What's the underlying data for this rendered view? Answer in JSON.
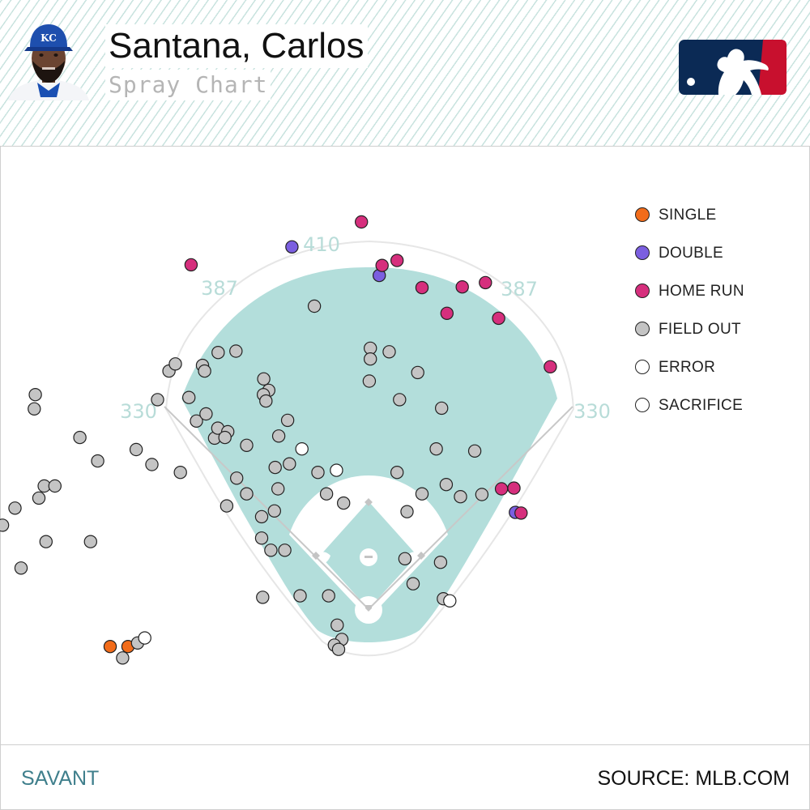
{
  "header": {
    "player_name": "Santana, Carlos",
    "subtitle": "Spray Chart",
    "avatar_icon": "player-headshot",
    "logo_icon": "mlb-logo"
  },
  "footer": {
    "left_label": "SAVANT",
    "right_label": "SOURCE: MLB.COM"
  },
  "colors": {
    "field": "#b3dedb",
    "single": "#f26c1a",
    "double": "#7b5fe0",
    "home_run": "#d62f7d",
    "field_out": "#c4c4c4",
    "error": "#ffffff",
    "sacrifice": "#ffffff",
    "logo_navy": "#0b2a55",
    "logo_red": "#c8102e"
  },
  "chart_data": {
    "type": "scatter",
    "title": "Spray Chart",
    "xlabel": "",
    "ylabel": "",
    "x_units": "Statcast hc_x",
    "y_units": "Statcast hc_y",
    "xlim": [
      0,
      250
    ],
    "ylim": [
      0,
      250
    ],
    "distance_labels": [
      {
        "text": "330",
        "side": "left"
      },
      {
        "text": "387",
        "side": "left-center"
      },
      {
        "text": "410",
        "side": "center"
      },
      {
        "text": "387",
        "side": "right-center"
      },
      {
        "text": "330",
        "side": "right"
      }
    ],
    "legend_position": "right",
    "series": [
      {
        "name": "SINGLE",
        "color": "#f26c1a",
        "points": [
          [
            52.5,
            70.4
          ],
          [
            57.5,
            70.4
          ]
        ]
      },
      {
        "name": "DOUBLE",
        "color": "#7b5fe0",
        "points": [
          [
            103.5,
            182.4
          ],
          [
            128.0,
            174.4
          ],
          [
            166.2,
            108.0
          ]
        ]
      },
      {
        "name": "HOME RUN",
        "color": "#d62f7d",
        "points": [
          [
            123.0,
            189.4
          ],
          [
            75.2,
            177.4
          ],
          [
            128.8,
            177.2
          ],
          [
            133.0,
            178.6
          ],
          [
            140.0,
            171.0
          ],
          [
            151.3,
            171.2
          ],
          [
            147.0,
            163.8
          ],
          [
            157.8,
            172.4
          ],
          [
            161.5,
            162.4
          ],
          [
            176.0,
            148.8
          ],
          [
            162.3,
            114.6
          ],
          [
            165.8,
            114.8
          ],
          [
            167.8,
            107.8
          ]
        ]
      },
      {
        "name": "FIELD OUT",
        "color": "#c4c4c4",
        "points": [
          [
            60.2,
            71.4
          ],
          [
            56.0,
            67.2
          ],
          [
            59.8,
            125.6
          ],
          [
            64.2,
            121.4
          ],
          [
            44.0,
            129.0
          ],
          [
            49.0,
            122.4
          ],
          [
            31.5,
            141.0
          ],
          [
            31.2,
            137.0
          ],
          [
            34.0,
            115.4
          ],
          [
            37.0,
            115.4
          ],
          [
            32.5,
            112.0
          ],
          [
            25.8,
            109.2
          ],
          [
            22.3,
            104.4
          ],
          [
            34.5,
            99.8
          ],
          [
            27.5,
            92.4
          ],
          [
            47.0,
            99.8
          ],
          [
            72.2,
            119.2
          ],
          [
            65.8,
            139.6
          ],
          [
            69.0,
            147.6
          ],
          [
            70.8,
            149.6
          ],
          [
            78.4,
            149.2
          ],
          [
            79.0,
            147.6
          ],
          [
            82.8,
            152.8
          ],
          [
            87.8,
            153.2
          ],
          [
            74.6,
            140.2
          ],
          [
            76.7,
            133.6
          ],
          [
            79.4,
            135.6
          ],
          [
            81.8,
            128.8
          ],
          [
            82.7,
            131.6
          ],
          [
            85.5,
            130.6
          ],
          [
            90.8,
            126.8
          ],
          [
            95.6,
            145.4
          ],
          [
            97.0,
            142.2
          ],
          [
            95.5,
            141.0
          ],
          [
            96.2,
            139.2
          ],
          [
            102.3,
            133.8
          ],
          [
            99.8,
            129.4
          ],
          [
            98.8,
            120.6
          ],
          [
            102.8,
            121.6
          ],
          [
            84.7,
            129.0
          ],
          [
            88.0,
            117.6
          ],
          [
            85.2,
            109.8
          ],
          [
            99.6,
            114.6
          ],
          [
            95.0,
            106.8
          ],
          [
            98.6,
            108.4
          ],
          [
            97.6,
            97.4
          ],
          [
            95.0,
            100.8
          ],
          [
            90.8,
            113.2
          ],
          [
            101.5,
            97.4
          ],
          [
            95.3,
            84.2
          ],
          [
            105.8,
            84.6
          ],
          [
            113.8,
            84.6
          ],
          [
            110.8,
            119.2
          ],
          [
            113.2,
            113.2
          ],
          [
            118.0,
            110.6
          ],
          [
            109.8,
            165.8
          ],
          [
            125.5,
            154.0
          ],
          [
            125.5,
            151.0
          ],
          [
            130.8,
            153.0
          ],
          [
            125.2,
            144.8
          ],
          [
            138.8,
            147.2
          ],
          [
            133.7,
            139.6
          ],
          [
            145.5,
            137.2
          ],
          [
            144.0,
            125.8
          ],
          [
            154.8,
            125.2
          ],
          [
            146.8,
            115.8
          ],
          [
            150.8,
            112.4
          ],
          [
            156.8,
            113.0
          ],
          [
            140.0,
            113.2
          ],
          [
            133.0,
            119.2
          ],
          [
            135.8,
            108.2
          ],
          [
            135.2,
            95.0
          ],
          [
            145.2,
            94.0
          ],
          [
            137.5,
            88.0
          ],
          [
            146.0,
            83.8
          ],
          [
            116.2,
            76.4
          ],
          [
            117.5,
            72.4
          ],
          [
            115.4,
            70.8
          ],
          [
            116.6,
            69.6
          ]
        ]
      },
      {
        "name": "ERROR",
        "color": "#ffffff",
        "points": [
          [
            106.3,
            125.8
          ],
          [
            116.0,
            119.8
          ]
        ]
      },
      {
        "name": "SACRIFICE",
        "color": "#ffffff",
        "points": [
          [
            62.2,
            72.8
          ],
          [
            147.8,
            83.2
          ]
        ]
      }
    ]
  }
}
